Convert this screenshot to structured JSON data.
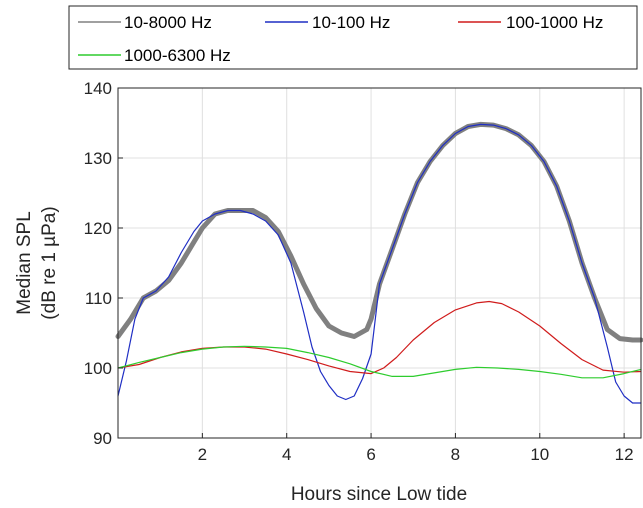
{
  "chart_data": {
    "type": "line",
    "xlabel": "Hours since Low tide",
    "ylabel_line1": "Median SPL",
    "ylabel_line2": "(dB re 1 µPa)",
    "xlim": [
      0,
      12.4
    ],
    "ylim": [
      90,
      140
    ],
    "xticks": [
      2,
      4,
      6,
      8,
      10,
      12
    ],
    "yticks": [
      90,
      100,
      110,
      120,
      130,
      140
    ],
    "grid": true,
    "legend": "top, outside plot, 3 columns",
    "series": [
      {
        "name": "10-8000 Hz",
        "color": "#808080",
        "x": [
          0,
          0.3,
          0.6,
          0.9,
          1.2,
          1.5,
          1.8,
          2.0,
          2.3,
          2.6,
          2.9,
          3.2,
          3.5,
          3.8,
          4.1,
          4.4,
          4.7,
          5.0,
          5.3,
          5.6,
          5.9,
          6.0,
          6.2,
          6.5,
          6.8,
          7.1,
          7.4,
          7.7,
          8.0,
          8.3,
          8.6,
          8.9,
          9.2,
          9.5,
          9.8,
          10.1,
          10.4,
          10.7,
          11.0,
          11.3,
          11.6,
          11.9,
          12.2,
          12.4
        ],
        "y": [
          104.5,
          107,
          110,
          111,
          112.5,
          115,
          118,
          120,
          122,
          122.5,
          122.5,
          122.5,
          121.5,
          119.5,
          116,
          112,
          108.5,
          106,
          105,
          104.5,
          105.5,
          107,
          112,
          117,
          122,
          126.5,
          129.5,
          131.8,
          133.5,
          134.5,
          134.8,
          134.7,
          134.2,
          133.3,
          131.8,
          129.5,
          126,
          121,
          115,
          110,
          105.5,
          104.2,
          104,
          104
        ]
      },
      {
        "name": "10-100 Hz",
        "color": "#1f2ec4",
        "x": [
          0,
          0.2,
          0.4,
          0.6,
          0.9,
          1.2,
          1.5,
          1.8,
          2.0,
          2.3,
          2.6,
          2.9,
          3.2,
          3.5,
          3.8,
          4.1,
          4.4,
          4.6,
          4.8,
          5.0,
          5.2,
          5.4,
          5.6,
          5.8,
          6.0,
          6.2,
          6.5,
          6.8,
          7.1,
          7.4,
          7.7,
          8.0,
          8.3,
          8.6,
          8.9,
          9.2,
          9.5,
          9.8,
          10.1,
          10.4,
          10.7,
          11.0,
          11.3,
          11.6,
          11.8,
          12.0,
          12.2,
          12.4
        ],
        "y": [
          96,
          101,
          107,
          110,
          111,
          113,
          116.5,
          119.5,
          121,
          122,
          122.5,
          122.5,
          122,
          121,
          119,
          115,
          108,
          103,
          99.5,
          97.5,
          96,
          95.5,
          96,
          98.5,
          102,
          112,
          117,
          122,
          126.5,
          129.5,
          131.8,
          133.5,
          134.5,
          134.8,
          134.7,
          134.2,
          133.3,
          131.8,
          129.5,
          126,
          121,
          115,
          110,
          103,
          98,
          96,
          95,
          95
        ]
      },
      {
        "name": "100-1000 Hz",
        "color": "#d01c1c",
        "x": [
          0,
          0.5,
          1.0,
          1.5,
          2.0,
          2.5,
          3.0,
          3.5,
          4.0,
          4.5,
          5.0,
          5.5,
          6.0,
          6.3,
          6.6,
          7.0,
          7.5,
          8.0,
          8.5,
          8.8,
          9.1,
          9.5,
          10.0,
          10.5,
          11.0,
          11.5,
          12.0,
          12.4
        ],
        "y": [
          100,
          100.5,
          101.5,
          102.3,
          102.8,
          103,
          103,
          102.7,
          102,
          101.2,
          100.3,
          99.5,
          99.2,
          100,
          101.5,
          104,
          106.5,
          108.3,
          109.3,
          109.5,
          109.2,
          108,
          106,
          103.5,
          101.2,
          99.7,
          99.4,
          99.5
        ]
      },
      {
        "name": "1000-6300 Hz",
        "color": "#2ecc2e",
        "x": [
          0,
          0.5,
          1.0,
          1.5,
          2.0,
          2.5,
          3.0,
          3.5,
          4.0,
          4.5,
          5.0,
          5.5,
          6.0,
          6.5,
          7.0,
          7.5,
          8.0,
          8.5,
          9.0,
          9.5,
          10.0,
          10.5,
          11.0,
          11.5,
          12.0,
          12.4
        ],
        "y": [
          100,
          100.8,
          101.5,
          102.2,
          102.7,
          103,
          103.1,
          103,
          102.8,
          102.2,
          101.5,
          100.6,
          99.5,
          98.8,
          98.8,
          99.3,
          99.8,
          100.1,
          100,
          99.8,
          99.5,
          99.1,
          98.6,
          98.6,
          99.2,
          99.8
        ]
      }
    ]
  }
}
